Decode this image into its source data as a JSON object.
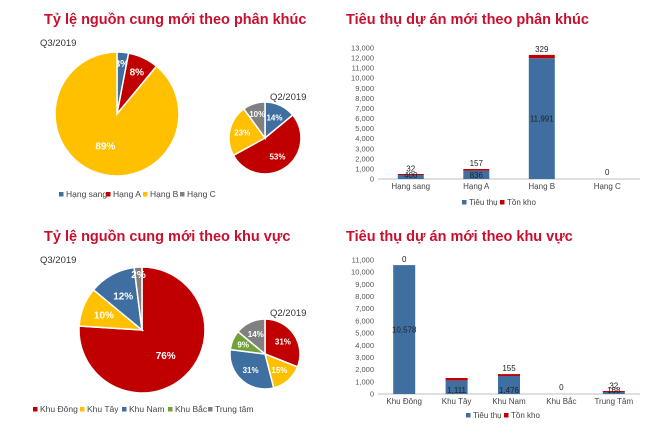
{
  "colors": {
    "title": "#c8102e",
    "series": [
      "#3f6fa0",
      "#c00000",
      "#ffc000",
      "#71a23a",
      "#808080"
    ],
    "sold": "#3f6fa0",
    "stock": "#c00000"
  },
  "chart_data": [
    {
      "type": "pie",
      "title": "Tỷ lệ nguồn cung mới theo phân khúc",
      "subtitle": "Q3/2019",
      "categories": [
        "Hạng sang",
        "Hạng A",
        "Hạng B",
        "Hạng C"
      ],
      "values": [
        3,
        8,
        89,
        0
      ],
      "labels": [
        "3%",
        "8%",
        "89%",
        ""
      ]
    },
    {
      "type": "pie",
      "subtitle": "Q2/2019",
      "categories": [
        "Hạng sang",
        "Hạng A",
        "Hạng B",
        "Hạng C"
      ],
      "values": [
        14,
        53,
        23,
        10
      ],
      "labels": [
        "14%",
        "53%",
        "23%",
        "10%"
      ]
    },
    {
      "type": "bar",
      "stacked": true,
      "title": "Tiêu thụ dự án mới theo phân khúc",
      "categories": [
        "Hạng sang",
        "Hạng A",
        "Hạng B",
        "Hạng C"
      ],
      "ylim": [
        0,
        13000
      ],
      "yticks": [
        "0",
        "1,000",
        "2,000",
        "3,000",
        "4,000",
        "5,000",
        "6,000",
        "7,000",
        "8,000",
        "9,000",
        "10,000",
        "11,000",
        "12,000",
        "13,000"
      ],
      "series": [
        {
          "name": "Tiêu thụ",
          "values": [
            400,
            836,
            11991,
            0
          ],
          "labels": [
            "400",
            "836",
            "11,991",
            "0"
          ]
        },
        {
          "name": "Tồn kho",
          "values": [
            32,
            157,
            329,
            0
          ],
          "labels": [
            "32",
            "157",
            "329",
            ""
          ]
        }
      ]
    },
    {
      "type": "pie",
      "title": "Tỷ lệ nguồn cung mới theo khu vực",
      "subtitle": "Q3/2019",
      "categories": [
        "Khu Đông",
        "Khu Tây",
        "Khu Nam",
        "Khu Bắc",
        "Trung tâm"
      ],
      "values": [
        76,
        10,
        12,
        0,
        2
      ],
      "labels": [
        "76%",
        "10%",
        "12%",
        "",
        "2%"
      ]
    },
    {
      "type": "pie",
      "subtitle": "Q2/2019",
      "categories": [
        "Khu Đông",
        "Khu Tây",
        "Khu Nam",
        "Khu Bắc",
        "Trung tâm"
      ],
      "values": [
        31,
        15,
        31,
        9,
        14
      ],
      "labels": [
        "31%",
        "15%",
        "31%",
        "9%",
        "14%"
      ]
    },
    {
      "type": "bar",
      "stacked": true,
      "title": "Tiêu thụ dự án mới theo khu vực",
      "categories": [
        "Khu Đông",
        "Khu Tây",
        "Khu Nam",
        "Khu Bắc",
        "Trung Tâm"
      ],
      "ylim": [
        0,
        11000
      ],
      "yticks": [
        "0",
        "1,000",
        "2,000",
        "3,000",
        "4,000",
        "5,000",
        "6,000",
        "7,000",
        "8,000",
        "9,000",
        "10,000",
        "11,000"
      ],
      "series": [
        {
          "name": "Tiêu thụ",
          "values": [
            10578,
            1111,
            1476,
            0,
            168
          ],
          "labels": [
            "10,578",
            "1,111",
            "1,476",
            "0",
            "168"
          ]
        },
        {
          "name": "Tồn kho",
          "values": [
            0,
            200,
            155,
            0,
            32
          ],
          "labels": [
            "0",
            "",
            "155",
            "",
            "32"
          ]
        }
      ]
    }
  ]
}
